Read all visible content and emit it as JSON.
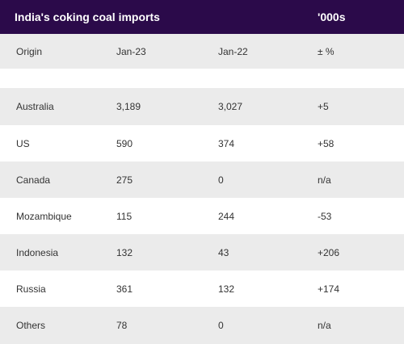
{
  "table": {
    "title": "India's coking coal imports",
    "unit": "'000s",
    "columns": [
      "Origin",
      "Jan-23",
      "Jan-22",
      "± %"
    ],
    "rows": [
      [
        "Australia",
        "3,189",
        "3,027",
        "+5"
      ],
      [
        "US",
        "590",
        "374",
        "+58"
      ],
      [
        "Canada",
        "275",
        "0",
        "n/a"
      ],
      [
        "Mozambique",
        "115",
        "244",
        "-53"
      ],
      [
        "Indonesia",
        "132",
        "43",
        "+206"
      ],
      [
        "Russia",
        "361",
        "132",
        "+174"
      ],
      [
        "Others",
        "78",
        "0",
        "n/a"
      ]
    ]
  },
  "colors": {
    "header_bg": "#2b0a4a",
    "header_text": "#ffffff",
    "row_shade": "#ebebeb",
    "row_plain": "#ffffff"
  }
}
